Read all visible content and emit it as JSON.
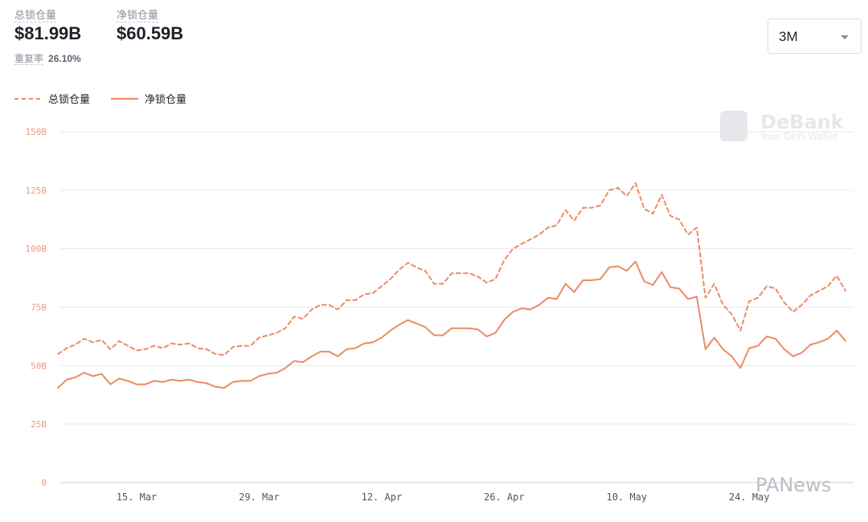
{
  "header": {
    "stats": [
      {
        "label": "总锁仓量",
        "value": "$81.99B"
      },
      {
        "label": "净锁仓量",
        "value": "$60.59B"
      }
    ],
    "repeat_label": "重复率",
    "repeat_value": "26.10%",
    "range_select": "3M"
  },
  "watermarks": {
    "brand": "DeBank",
    "slogan": "Your DeFi Wallet",
    "source": "PANews"
  },
  "chart_data": {
    "type": "line",
    "categories": [
      null,
      null,
      null,
      null,
      null,
      null,
      null,
      null,
      null,
      "15. Mar",
      null,
      null,
      null,
      null,
      null,
      null,
      null,
      null,
      null,
      null,
      null,
      null,
      null,
      "29. Mar",
      null,
      null,
      null,
      null,
      null,
      null,
      null,
      null,
      null,
      null,
      null,
      null,
      null,
      "12. Apr",
      null,
      null,
      null,
      null,
      null,
      null,
      null,
      null,
      null,
      null,
      null,
      null,
      null,
      "26. Apr",
      null,
      null,
      null,
      null,
      null,
      null,
      null,
      null,
      null,
      null,
      null,
      null,
      null,
      "10. May",
      null,
      null,
      null,
      null,
      null,
      null,
      null,
      null,
      null,
      null,
      null,
      null,
      null,
      "24. May",
      null,
      null,
      null,
      null,
      null,
      null,
      null,
      null,
      null,
      null,
      null
    ],
    "series": [
      {
        "name": "总锁仓量",
        "color": "#ec8b65",
        "dash": true,
        "values": [
          55,
          57.5,
          59,
          61.5,
          60,
          61,
          57,
          60.5,
          58.5,
          56.5,
          57,
          58.5,
          57.5,
          59.5,
          59,
          59.5,
          57.5,
          57,
          55,
          54.5,
          58,
          58.5,
          58.5,
          62,
          63,
          64,
          66,
          71,
          70,
          74,
          76,
          76,
          74,
          78,
          78,
          80.5,
          81,
          84,
          87,
          91,
          94,
          92,
          90.5,
          85,
          85,
          89.5,
          89.5,
          89.5,
          88,
          85.5,
          87,
          95,
          100,
          102,
          104,
          106,
          109,
          110,
          116.5,
          112,
          117.5,
          117.5,
          118.5,
          125,
          126,
          122.5,
          128,
          117,
          115,
          123,
          114,
          112.5,
          106,
          109,
          79,
          85,
          76,
          72,
          65,
          77.5,
          79,
          84,
          83,
          77,
          73,
          76,
          80,
          82,
          84,
          88.5,
          82
        ]
      },
      {
        "name": "净锁仓量",
        "color": "#ec8b65",
        "dash": false,
        "values": [
          40.5,
          44,
          45,
          47,
          45.5,
          46.5,
          42,
          44.5,
          43.5,
          42,
          42,
          43.5,
          43,
          44,
          43.5,
          44,
          43,
          42.5,
          41,
          40.5,
          43,
          43.5,
          43.5,
          45.5,
          46.5,
          47,
          49,
          52,
          51.5,
          54,
          56,
          56,
          54,
          57,
          57.5,
          59.5,
          60,
          62,
          65,
          67.5,
          69.5,
          68,
          66.5,
          63,
          63,
          66,
          66,
          66,
          65.5,
          62.5,
          64,
          69.5,
          73,
          74.5,
          74,
          76,
          79,
          78.5,
          85,
          81.5,
          86.5,
          86.5,
          87,
          92,
          92.5,
          90.5,
          94.5,
          86,
          84.5,
          90,
          83.5,
          83,
          78.5,
          79.5,
          57,
          62,
          57,
          54,
          49,
          57.5,
          58.5,
          62.5,
          61.5,
          57,
          54,
          55.5,
          59,
          60,
          61.5,
          65,
          60.5
        ]
      }
    ],
    "ylim": [
      0,
      150
    ],
    "yticks": [
      {
        "value": 0,
        "label": "0"
      },
      {
        "value": 25,
        "label": "25B"
      },
      {
        "value": 50,
        "label": "50B"
      },
      {
        "value": 75,
        "label": "75B"
      },
      {
        "value": 100,
        "label": "100B"
      },
      {
        "value": 125,
        "label": "125B"
      },
      {
        "value": 150,
        "label": "150B"
      }
    ],
    "grid": true,
    "legend": "top-left"
  }
}
